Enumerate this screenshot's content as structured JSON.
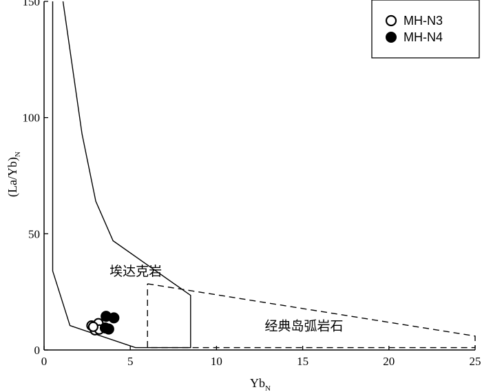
{
  "chart_data": {
    "type": "scatter",
    "title": "",
    "xlabel": "Yb",
    "xlabel_sub": "N",
    "ylabel": "(La/Yb)",
    "ylabel_sub": "N",
    "xlim": [
      0,
      25
    ],
    "ylim": [
      0,
      150
    ],
    "xticks": [
      {
        "value": 0,
        "label": "0"
      },
      {
        "value": 5,
        "label": "5"
      },
      {
        "value": 10,
        "label": "10"
      },
      {
        "value": 15,
        "label": "15"
      },
      {
        "value": 20,
        "label": "20"
      },
      {
        "value": 25,
        "label": "25"
      }
    ],
    "yticks": [
      {
        "value": 0,
        "label": "0"
      },
      {
        "value": 50,
        "label": "50"
      },
      {
        "value": 100,
        "label": "100"
      },
      {
        "value": 150,
        "label": "150"
      }
    ],
    "grid": false,
    "legend_position": "top-right",
    "series": [
      {
        "name": "MH-N3",
        "marker": "open-circle",
        "color": "#000000",
        "points": [
          [
            2.75,
            10.5
          ],
          [
            2.95,
            8.5
          ],
          [
            3.15,
            11.5
          ],
          [
            3.2,
            8.8
          ],
          [
            2.85,
            10.0
          ]
        ]
      },
      {
        "name": "MH-N4",
        "marker": "filled-circle",
        "color": "#000000",
        "points": [
          [
            3.6,
            14.5
          ],
          [
            4.05,
            13.8
          ],
          [
            3.75,
            9.0
          ],
          [
            3.55,
            9.5
          ]
        ]
      }
    ],
    "regions": [
      {
        "label": "埃达克岩",
        "style": "solid",
        "label_at": [
          3.8,
          32
        ],
        "points": [
          [
            1.1,
            150
          ],
          [
            2.2,
            93
          ],
          [
            3.0,
            64
          ],
          [
            4.0,
            47
          ],
          [
            8.5,
            23.5
          ],
          [
            8.5,
            1
          ],
          [
            5.3,
            1
          ],
          [
            1.5,
            10.5
          ],
          [
            0.5,
            34
          ],
          [
            0.5,
            150
          ]
        ]
      },
      {
        "label": "经典岛弧岩石",
        "style": "dashed",
        "label_at": [
          12.8,
          8.5
        ],
        "points": [
          [
            6.0,
            28.5
          ],
          [
            25,
            6
          ],
          [
            25,
            1
          ],
          [
            6.0,
            1
          ],
          [
            6.0,
            28.5
          ]
        ]
      }
    ]
  }
}
